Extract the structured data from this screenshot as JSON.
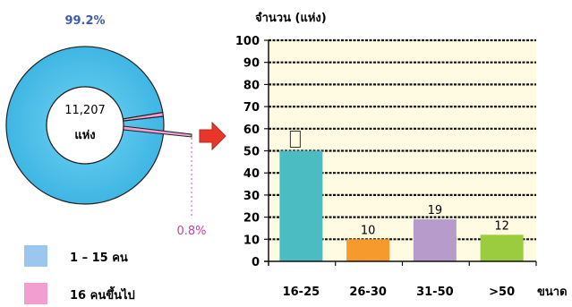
{
  "chart_data": [
    {
      "type": "pie",
      "center_value": "11,207",
      "center_unit": "แห่ง",
      "slices": [
        {
          "name": "1 – 15 คน",
          "percent": 99.2,
          "label": "99.2%",
          "color": "#4FC3EA"
        },
        {
          "name": "16 คนขึ้นไป",
          "percent": 0.8,
          "label": "0.8%",
          "color": "#F29ED0"
        }
      ],
      "legend": [
        {
          "label": "1 – 15 คน",
          "color": "#9BC7EE"
        },
        {
          "label": "16 คนขึ้นไป",
          "color": "#F29ED0"
        }
      ],
      "legend_placement": "bottom-left",
      "colors": {
        "label_main": "#3B5BB5",
        "label_small": "#C0449E"
      }
    },
    {
      "type": "bar",
      "ylabel": "จำนวน (แห่ง)",
      "xlabel": "ขนาด",
      "ylim": [
        0,
        100
      ],
      "yticks": [
        0,
        10,
        20,
        30,
        40,
        50,
        60,
        70,
        80,
        90,
        100
      ],
      "categories": [
        "16-25",
        "26-30",
        "31-50",
        ">50"
      ],
      "values": [
        50,
        10,
        19,
        12
      ],
      "data_labels": [
        "",
        "10",
        "19",
        "12"
      ],
      "colors": [
        "#4BBDC2",
        "#F79A2E",
        "#B79CCB",
        "#9BCB3E"
      ],
      "grid": true,
      "plot_background": "#FFFBE3"
    }
  ],
  "arrow": {
    "color": "#E8372A"
  }
}
